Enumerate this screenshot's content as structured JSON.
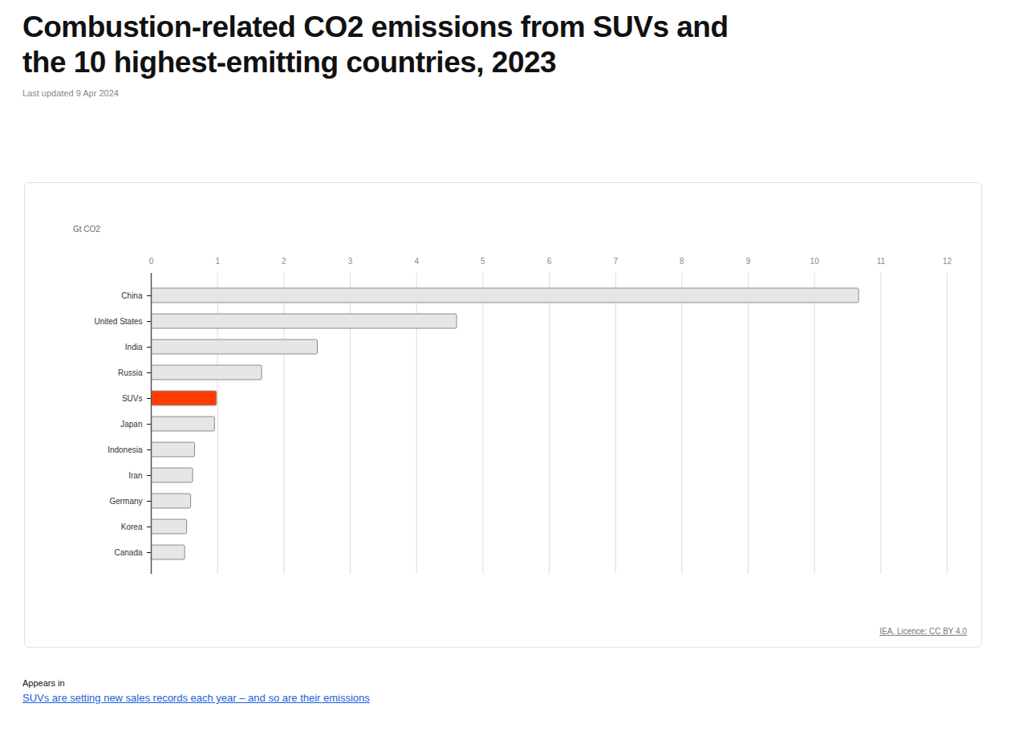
{
  "chart_data": {
    "type": "bar",
    "orientation": "horizontal",
    "title": "Combustion-related CO2 emissions from SUVs and the 10 highest-emitting countries, 2023",
    "subtitle": "Last updated 9 Apr 2024",
    "xlabel": "Gt CO2",
    "categories": [
      "China",
      "United States",
      "India",
      "Russia",
      "SUVs",
      "Japan",
      "Indonesia",
      "Iran",
      "Germany",
      "Korea",
      "Canada"
    ],
    "values": [
      10.67,
      4.61,
      2.51,
      1.67,
      0.99,
      0.96,
      0.66,
      0.63,
      0.6,
      0.54,
      0.51
    ],
    "colors": [
      "#e6e6e6",
      "#e6e6e6",
      "#e6e6e6",
      "#e6e6e6",
      "#ff3d00",
      "#e6e6e6",
      "#e6e6e6",
      "#e6e6e6",
      "#e6e6e6",
      "#e6e6e6",
      "#e6e6e6"
    ],
    "xlim": [
      0,
      12
    ],
    "xticks": [
      0,
      1,
      2,
      3,
      4,
      5,
      6,
      7,
      8,
      9,
      10,
      11,
      12
    ],
    "grid": true,
    "source": "IEA. Licence: CC BY 4.0",
    "appears_in": "Appears in",
    "link": "SUVs are setting new sales records each year – and so are their emissions"
  }
}
